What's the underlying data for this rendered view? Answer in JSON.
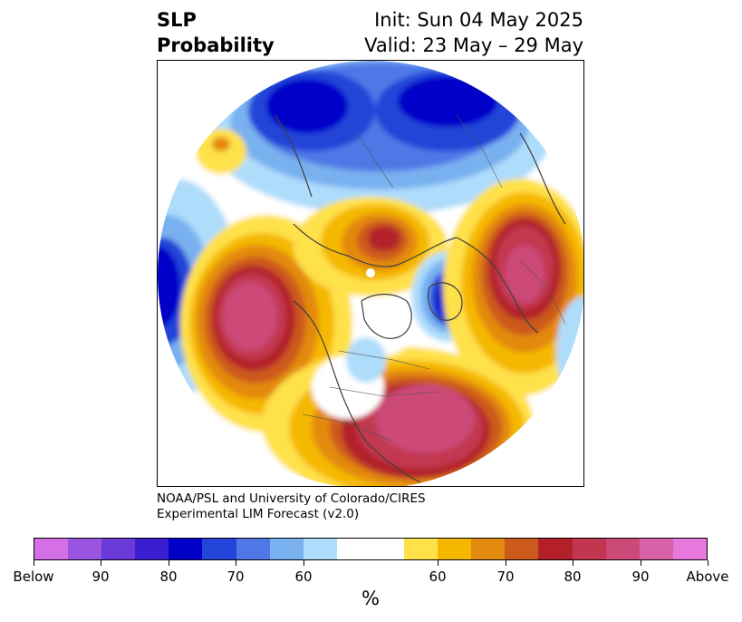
{
  "title": {
    "left_line1": "SLP",
    "left_line2": "Probability",
    "right_line1": "Init: Sun 04 May 2025",
    "right_line2": "Valid: 23 May – 29 May"
  },
  "credit": {
    "line1": "NOAA/PSL and University of Colorado/CIRES",
    "line2": "Experimental LIM Forecast (v2.0)"
  },
  "colorbar": {
    "colors": [
      "#d46fe8",
      "#9a55e0",
      "#6a3ad8",
      "#3a1fd0",
      "#0000c8",
      "#2244d8",
      "#4f78e6",
      "#78b0f0",
      "#aedcfb",
      "#ffffff",
      "#ffe14a",
      "#f5b800",
      "#e38a10",
      "#cc5a1a",
      "#b3202a",
      "#c2374f",
      "#cc4a78",
      "#d862a8",
      "#e878dc"
    ],
    "labels": [
      "Below",
      "90",
      "80",
      "70",
      "60",
      "60",
      "70",
      "80",
      "90",
      "Above"
    ],
    "unit": "%"
  }
}
